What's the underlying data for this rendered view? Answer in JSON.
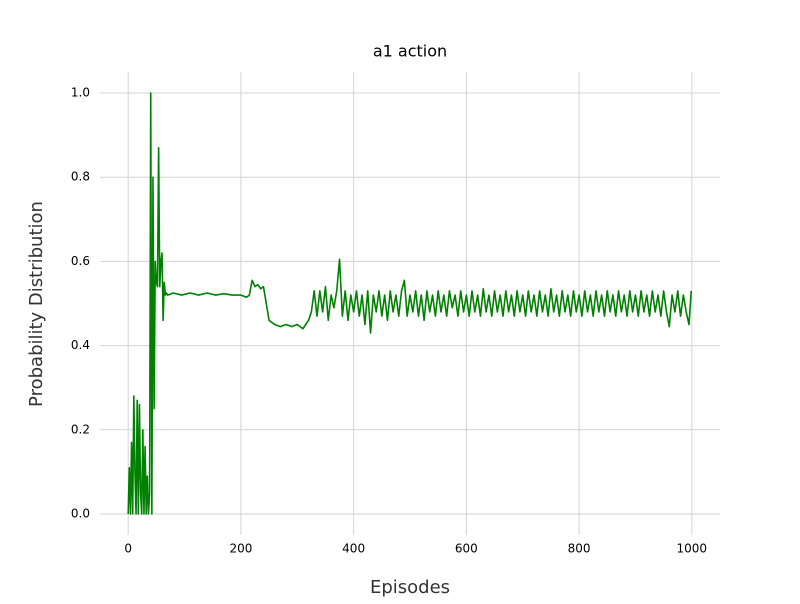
{
  "chart_data": {
    "type": "line",
    "title": "a1 action",
    "x_label": "Episodes",
    "y_label": "Probability Distribution",
    "color": "#008000",
    "grid": true,
    "xlim": [
      -50,
      1050
    ],
    "ylim": [
      -0.05,
      1.05
    ],
    "xticks": [
      0,
      200,
      400,
      600,
      800,
      1000
    ],
    "yticks": [
      {
        "value": 0,
        "label": "0.0"
      },
      0.2,
      0.4,
      0.6,
      0.8,
      {
        "value": 1,
        "label": "1.0"
      }
    ],
    "x": [
      0,
      2,
      4,
      6,
      8,
      10,
      12,
      14,
      16,
      18,
      20,
      22,
      24,
      26,
      28,
      30,
      32,
      34,
      36,
      38,
      40,
      42,
      44,
      46,
      48,
      50,
      52,
      54,
      56,
      58,
      60,
      62,
      64,
      66,
      68,
      70,
      80,
      95,
      110,
      125,
      140,
      155,
      170,
      185,
      200,
      210,
      215,
      220,
      225,
      230,
      235,
      240,
      245,
      250,
      260,
      270,
      280,
      290,
      300,
      310,
      320,
      325,
      330,
      335,
      340,
      345,
      350,
      355,
      360,
      365,
      370,
      375,
      380,
      385,
      390,
      395,
      400,
      405,
      410,
      415,
      420,
      425,
      430,
      435,
      440,
      445,
      450,
      455,
      460,
      465,
      470,
      475,
      480,
      485,
      490,
      495,
      500,
      505,
      510,
      515,
      520,
      525,
      530,
      535,
      540,
      545,
      550,
      555,
      560,
      565,
      570,
      575,
      580,
      585,
      590,
      595,
      600,
      605,
      610,
      615,
      620,
      625,
      630,
      635,
      640,
      645,
      650,
      655,
      660,
      665,
      670,
      675,
      680,
      685,
      690,
      695,
      700,
      705,
      710,
      715,
      720,
      725,
      730,
      735,
      740,
      745,
      750,
      755,
      760,
      765,
      770,
      775,
      780,
      785,
      790,
      795,
      800,
      805,
      810,
      815,
      820,
      825,
      830,
      835,
      840,
      845,
      850,
      855,
      860,
      865,
      870,
      875,
      880,
      885,
      890,
      895,
      900,
      905,
      910,
      915,
      920,
      925,
      930,
      935,
      940,
      945,
      950,
      955,
      960,
      965,
      970,
      975,
      980,
      985,
      990,
      995,
      999
    ],
    "values": [
      0,
      0.11,
      0,
      0.17,
      0,
      0.28,
      0.1,
      0,
      0.27,
      0,
      0.26,
      0.05,
      0,
      0.2,
      0,
      0.16,
      0,
      0.09,
      0,
      0.05,
      1.0,
      0,
      0.8,
      0.25,
      0.6,
      0.55,
      0.54,
      0.87,
      0.54,
      0.6,
      0.62,
      0.46,
      0.55,
      0.52,
      0.525,
      0.52,
      0.525,
      0.52,
      0.525,
      0.52,
      0.525,
      0.52,
      0.523,
      0.52,
      0.52,
      0.515,
      0.52,
      0.555,
      0.54,
      0.545,
      0.535,
      0.54,
      0.5,
      0.46,
      0.45,
      0.445,
      0.45,
      0.445,
      0.45,
      0.44,
      0.46,
      0.48,
      0.53,
      0.47,
      0.53,
      0.48,
      0.54,
      0.46,
      0.52,
      0.49,
      0.53,
      0.605,
      0.47,
      0.53,
      0.46,
      0.52,
      0.48,
      0.53,
      0.47,
      0.52,
      0.45,
      0.53,
      0.43,
      0.52,
      0.48,
      0.53,
      0.47,
      0.52,
      0.46,
      0.53,
      0.48,
      0.52,
      0.47,
      0.53,
      0.555,
      0.47,
      0.52,
      0.48,
      0.53,
      0.47,
      0.52,
      0.46,
      0.53,
      0.48,
      0.52,
      0.47,
      0.53,
      0.48,
      0.52,
      0.47,
      0.53,
      0.49,
      0.52,
      0.47,
      0.53,
      0.48,
      0.52,
      0.47,
      0.53,
      0.48,
      0.52,
      0.47,
      0.535,
      0.48,
      0.52,
      0.47,
      0.53,
      0.48,
      0.52,
      0.47,
      0.53,
      0.48,
      0.52,
      0.47,
      0.53,
      0.48,
      0.52,
      0.47,
      0.53,
      0.48,
      0.52,
      0.47,
      0.53,
      0.48,
      0.52,
      0.47,
      0.535,
      0.48,
      0.52,
      0.47,
      0.53,
      0.48,
      0.52,
      0.47,
      0.53,
      0.48,
      0.52,
      0.47,
      0.53,
      0.48,
      0.52,
      0.47,
      0.53,
      0.48,
      0.52,
      0.47,
      0.53,
      0.48,
      0.52,
      0.47,
      0.53,
      0.48,
      0.52,
      0.47,
      0.53,
      0.48,
      0.52,
      0.47,
      0.53,
      0.48,
      0.52,
      0.47,
      0.53,
      0.48,
      0.52,
      0.47,
      0.53,
      0.48,
      0.445,
      0.52,
      0.48,
      0.53,
      0.47,
      0.52,
      0.48,
      0.45,
      0.53
    ]
  }
}
